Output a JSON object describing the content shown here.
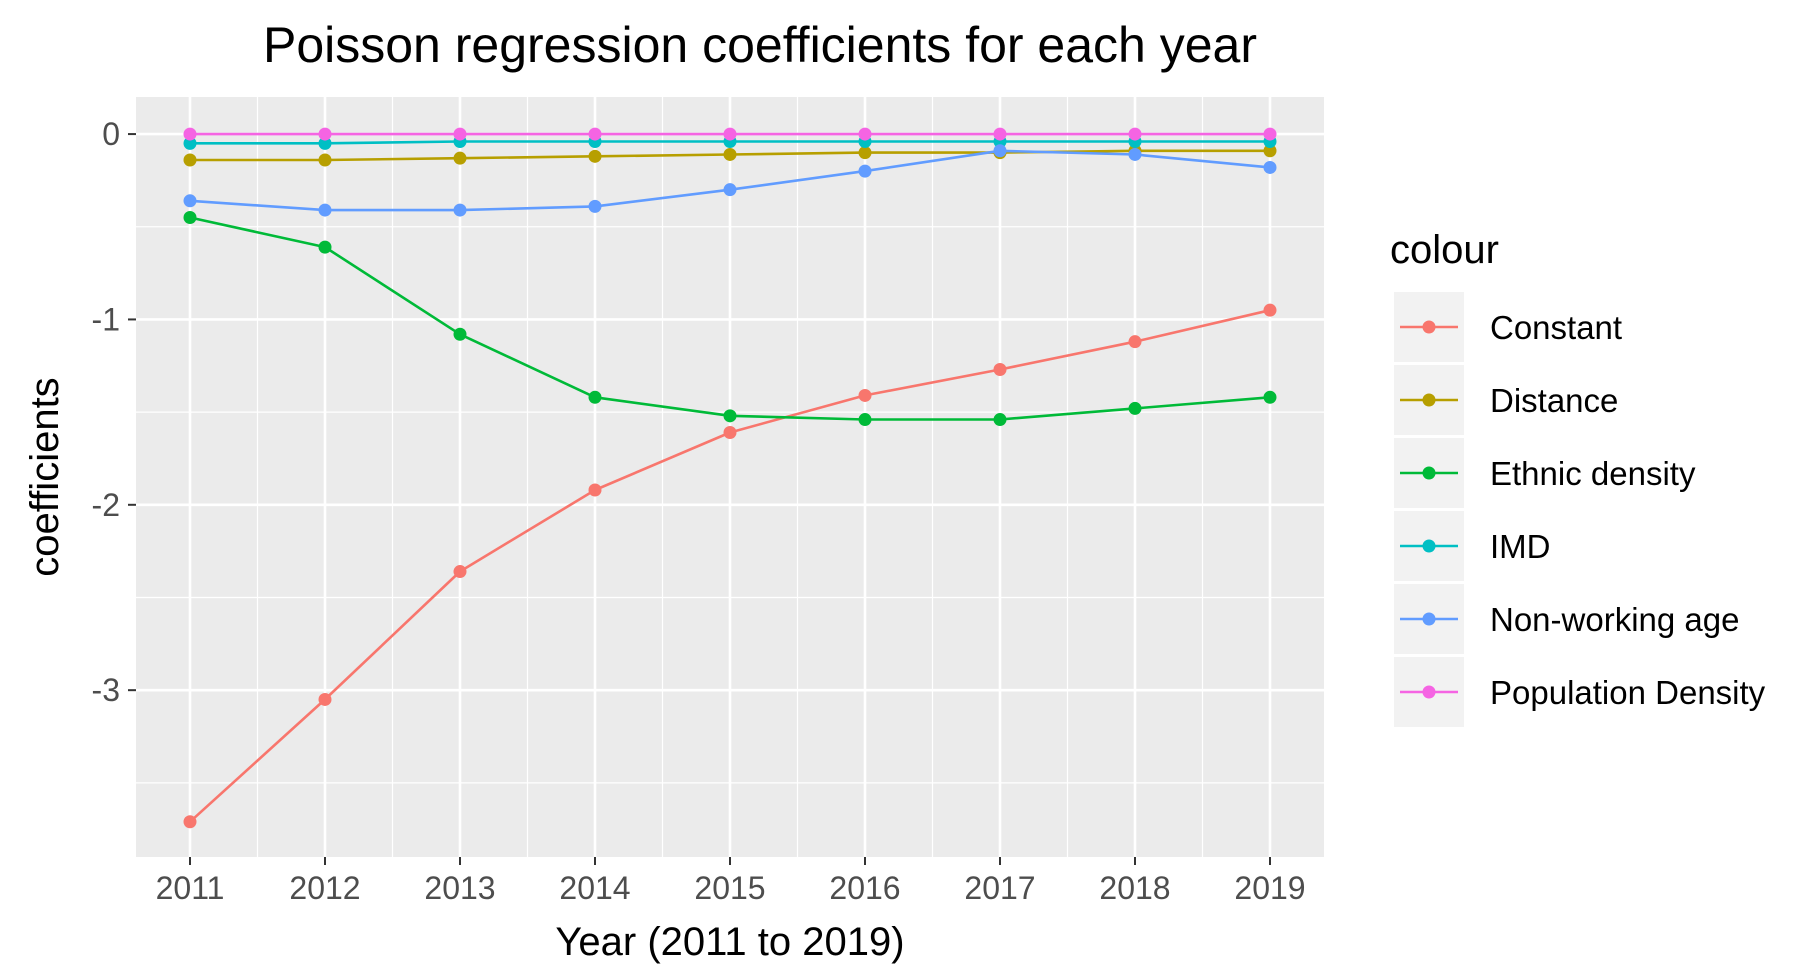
{
  "chart_data": {
    "type": "line",
    "title": "Poisson regression coefficients for each year",
    "xlabel": "Year (2011 to 2019)",
    "ylabel": "coefficients",
    "x": [
      2011,
      2012,
      2013,
      2014,
      2015,
      2016,
      2017,
      2018,
      2019
    ],
    "x_tick_labels": [
      "2011",
      "2012",
      "2013",
      "2014",
      "2015",
      "2016",
      "2017",
      "2018",
      "2019"
    ],
    "y_ticks": [
      0,
      -1,
      -2,
      -3
    ],
    "y_tick_labels": [
      "0",
      "-1",
      "-2",
      "-3"
    ],
    "ylim": [
      -3.9,
      0.2
    ],
    "grid": true,
    "legend": {
      "title": "colour",
      "position": "right"
    },
    "series": [
      {
        "name": "Constant",
        "color": "#F8766D",
        "values": [
          -3.71,
          -3.05,
          -2.36,
          -1.92,
          -1.61,
          -1.41,
          -1.27,
          -1.12,
          -0.95
        ]
      },
      {
        "name": "Distance",
        "color": "#B79F00",
        "values": [
          -0.14,
          -0.14,
          -0.13,
          -0.12,
          -0.11,
          -0.1,
          -0.1,
          -0.09,
          -0.09
        ]
      },
      {
        "name": "Ethnic density",
        "color": "#00BA38",
        "values": [
          -0.45,
          -0.61,
          -1.08,
          -1.42,
          -1.52,
          -1.54,
          -1.54,
          -1.48,
          -1.42
        ]
      },
      {
        "name": "IMD",
        "color": "#00BFC4",
        "values": [
          -0.05,
          -0.05,
          -0.04,
          -0.04,
          -0.04,
          -0.04,
          -0.04,
          -0.04,
          -0.04
        ]
      },
      {
        "name": "Non-working age",
        "color": "#619CFF",
        "values": [
          -0.36,
          -0.41,
          -0.41,
          -0.39,
          -0.3,
          -0.2,
          -0.09,
          -0.11,
          -0.18
        ]
      },
      {
        "name": "Population Density",
        "color": "#F564E3",
        "values": [
          0,
          0,
          0,
          0,
          0,
          0,
          0,
          0,
          0
        ]
      }
    ]
  }
}
